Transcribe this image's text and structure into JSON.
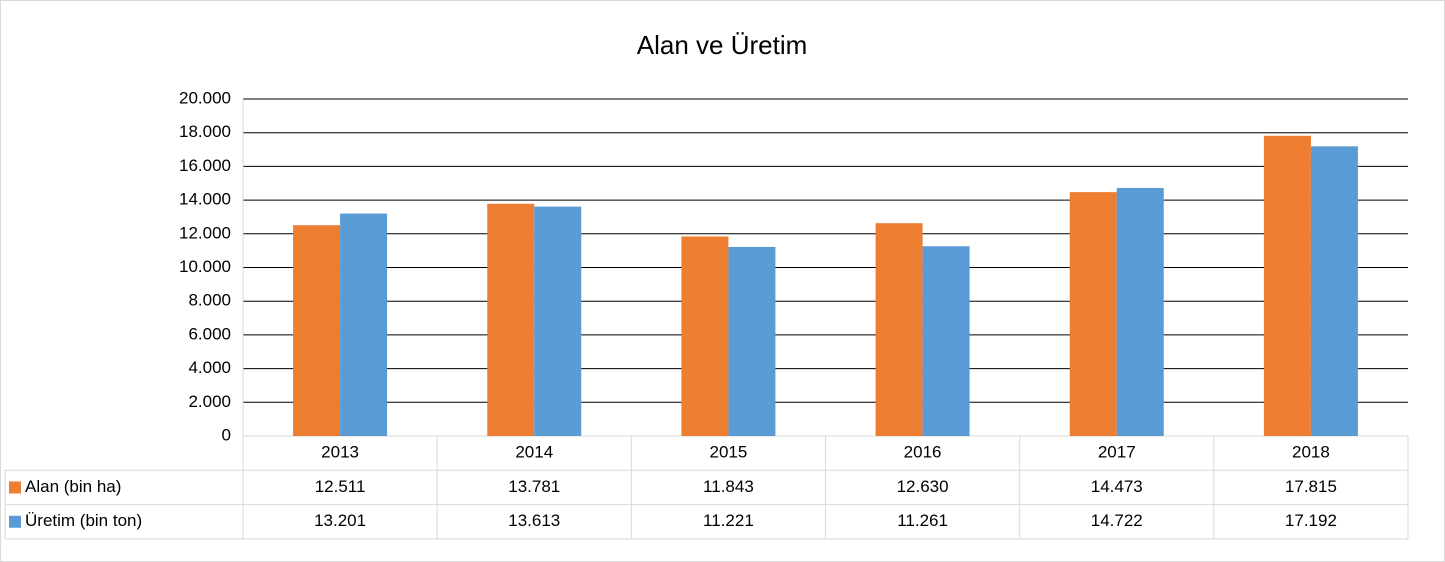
{
  "chart_data": {
    "type": "bar",
    "title": "Alan ve Üretim",
    "categories": [
      "2013",
      "2014",
      "2015",
      "2016",
      "2017",
      "2018"
    ],
    "series": [
      {
        "name": "Alan (bin ha)",
        "color": "#ed7d31",
        "values": [
          12511,
          13781,
          11843,
          12630,
          14473,
          17815
        ],
        "value_labels": [
          "12.511",
          "13.781",
          "11.843",
          "12.630",
          "14.473",
          "17.815"
        ]
      },
      {
        "name": "Üretim (bin ton)",
        "color": "#5b9bd5",
        "values": [
          13201,
          13613,
          11221,
          11261,
          14722,
          17192
        ],
        "value_labels": [
          "13.201",
          "13.613",
          "11.221",
          "11.261",
          "14.722",
          "17.192"
        ]
      }
    ],
    "ylim": [
      0,
      20000
    ],
    "yticks": [
      0,
      {
        "value": 2000,
        "label": "2.000"
      },
      {
        "value": 4000,
        "label": "4.000"
      },
      {
        "value": 6000,
        "label": "6.000"
      },
      {
        "value": 8000,
        "label": "8.000"
      },
      {
        "value": 10000,
        "label": "10.000"
      },
      {
        "value": 12000,
        "label": "12.000"
      },
      {
        "value": 14000,
        "label": "14.000"
      },
      {
        "value": 16000,
        "label": "16.000"
      },
      {
        "value": 18000,
        "label": "18.000"
      },
      {
        "value": 20000,
        "label": "20.000"
      }
    ],
    "grid": true
  }
}
